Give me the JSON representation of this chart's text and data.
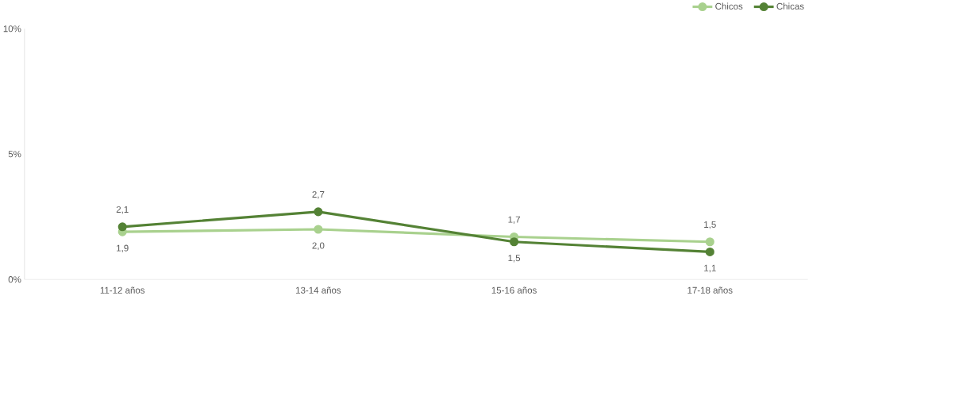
{
  "chart_data": {
    "type": "line",
    "categories": [
      "11-12 años",
      "13-14 años",
      "15-16 años",
      "17-18 años"
    ],
    "series": [
      {
        "name": "Chicos",
        "color": "#a9d18e",
        "values": [
          1.9,
          2.0,
          1.7,
          1.5
        ],
        "value_labels": [
          "1,9",
          "2,0",
          "1,7",
          "1,5"
        ]
      },
      {
        "name": "Chicas",
        "color": "#548235",
        "values": [
          2.1,
          2.7,
          1.5,
          1.1
        ],
        "value_labels": [
          "2,1",
          "2,7",
          "1,5",
          "1,1"
        ]
      }
    ],
    "ylim": [
      0,
      10
    ],
    "yticks": [
      {
        "value": 0,
        "label": "0%"
      },
      {
        "value": 5,
        "label": "5%"
      },
      {
        "value": 10,
        "label": "10%"
      }
    ],
    "grid": false,
    "legend": "top right",
    "marker": "circle",
    "line_style": "solid"
  }
}
